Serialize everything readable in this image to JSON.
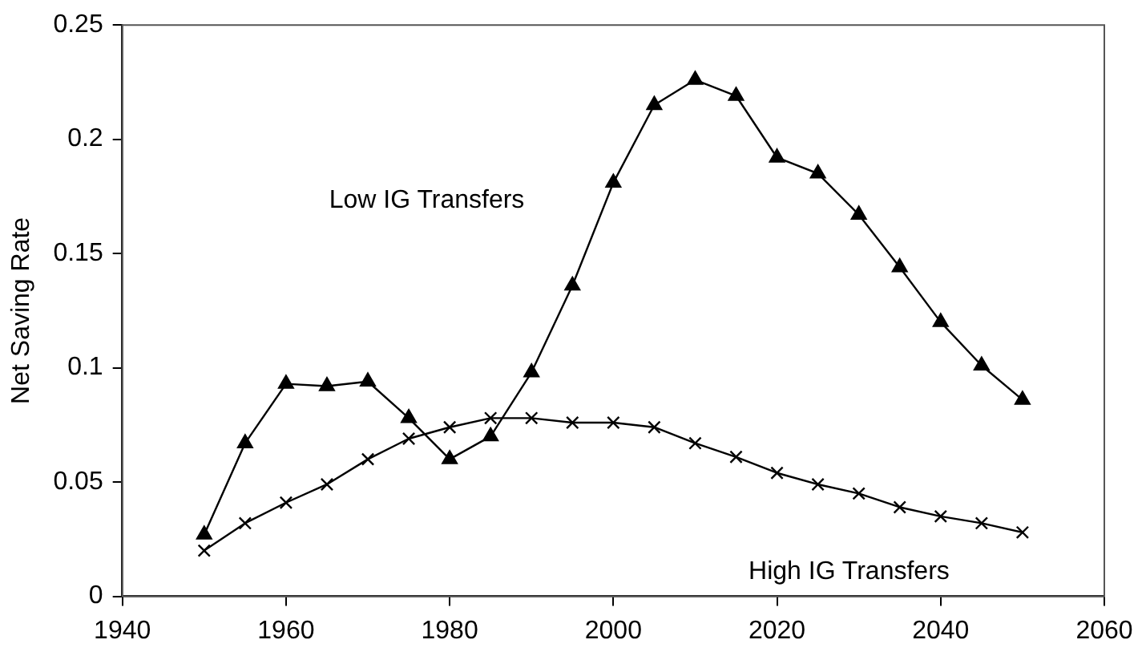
{
  "chart_data": {
    "type": "line",
    "ylabel": "Net Saving Rate",
    "xlim": [
      1940,
      2060
    ],
    "xticks": [
      1940,
      1960,
      1980,
      2000,
      2020,
      2040,
      2060
    ],
    "ylim": [
      0,
      0.25
    ],
    "yticks": [
      0,
      0.05,
      {
        "value": 0.1,
        "label": "0.1"
      },
      0.15,
      {
        "value": 0.2,
        "label": "0.2"
      },
      0.25
    ],
    "grid": false,
    "legend": false,
    "x": [
      1950,
      1955,
      1960,
      1965,
      1970,
      1975,
      1980,
      1985,
      1990,
      1995,
      2000,
      2005,
      2010,
      2015,
      2020,
      2025,
      2030,
      2035,
      2040,
      2045,
      2050
    ],
    "series": [
      {
        "name": "Low IG Transfers",
        "color": "#000000",
        "marker": "triangle",
        "values": [
          0.027,
          0.067,
          0.093,
          0.092,
          0.094,
          0.078,
          0.06,
          0.07,
          0.098,
          0.136,
          0.181,
          0.215,
          0.226,
          0.219,
          0.192,
          0.185,
          0.167,
          0.144,
          0.12,
          0.101,
          0.086
        ]
      },
      {
        "name": "High IG Transfers",
        "color": "#000000",
        "marker": "cross",
        "values": [
          0.02,
          0.032,
          0.041,
          0.049,
          0.06,
          0.069,
          0.074,
          0.078,
          0.078,
          0.076,
          0.076,
          0.074,
          0.067,
          0.061,
          0.054,
          0.049,
          0.045,
          0.039,
          0.035,
          0.032,
          0.028
        ]
      }
    ]
  }
}
